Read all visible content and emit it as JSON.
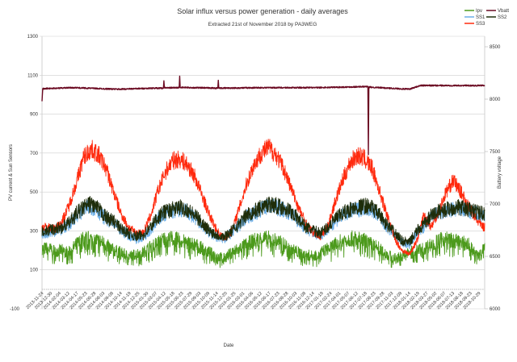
{
  "chart_data": {
    "type": "line",
    "title": "Solar influx versus power generation - daily averages",
    "subtitle": "Extracted 21st of November 2018 by PA3WEG",
    "xlabel": "Date",
    "ylabel": "PV current & Sun Sensors",
    "y2label": "Battery voltage",
    "ylim": [
      -100,
      1300
    ],
    "y2lim": [
      6000,
      8600
    ],
    "yticks": [
      "-100",
      "100",
      "300",
      "500",
      "700",
      "900",
      "1100",
      "1300"
    ],
    "y2ticks": [
      "6000",
      "6500",
      "7000",
      "7500",
      "8000",
      "8500"
    ],
    "grid": true,
    "legend_position": "top-right",
    "x_tick_labels": [
      "2013-11-24",
      "2013-12-30",
      "2014-02-04",
      "2014-03-12",
      "2014-04-17",
      "2014-05-23",
      "2014-06-28",
      "2014-08-03",
      "2014-09-08",
      "2014-10-14",
      "2014-11-19",
      "2014-12-25",
      "2015-01-30",
      "2015-03-07",
      "2015-04-12",
      "2015-05-18",
      "2015-06-23",
      "2015-07-29",
      "2015-09-03",
      "2015-10-09",
      "2015-11-14",
      "2015-12-20",
      "2016-01-25",
      "2016-03-01",
      "2016-04-06",
      "2016-05-12",
      "2016-06-17",
      "2016-07-23",
      "2016-08-28",
      "2016-10-03",
      "2016-11-08",
      "2016-12-14",
      "2017-01-19",
      "2017-02-24",
      "2017-04-01",
      "2017-05-07",
      "2017-06-12",
      "2017-07-18",
      "2017-08-23",
      "2017-09-28",
      "2017-11-03",
      "2017-12-09",
      "2018-01-14",
      "2018-02-19",
      "2018-03-27",
      "2018-05-02",
      "2018-06-07",
      "2018-07-13",
      "2018-08-18",
      "2018-09-23",
      "2018-10-29"
    ],
    "x": [
      "2013-12",
      "2014-01",
      "2014-02",
      "2014-03",
      "2014-04",
      "2014-05",
      "2014-06",
      "2014-07",
      "2014-08",
      "2014-09",
      "2014-10",
      "2014-11",
      "2014-12",
      "2015-01",
      "2015-02",
      "2015-03",
      "2015-04",
      "2015-05",
      "2015-06",
      "2015-07",
      "2015-08",
      "2015-09",
      "2015-10",
      "2015-11",
      "2015-12",
      "2016-01",
      "2016-02",
      "2016-03",
      "2016-04",
      "2016-05",
      "2016-06",
      "2016-07",
      "2016-08",
      "2016-09",
      "2016-10",
      "2016-11",
      "2016-12",
      "2017-01",
      "2017-02",
      "2017-03",
      "2017-04",
      "2017-05",
      "2017-06",
      "2017-07",
      "2017-08",
      "2017-09",
      "2017-10",
      "2017-11",
      "2017-12",
      "2018-01",
      "2018-02",
      "2018-03",
      "2018-04",
      "2018-05",
      "2018-06",
      "2018-07",
      "2018-08",
      "2018-09",
      "2018-10",
      "2018-11"
    ],
    "series": [
      {
        "name": "Ipv",
        "color": "#4c9a1c",
        "axis": "left",
        "values": [
          210,
          200,
          200,
          190,
          230,
          260,
          260,
          250,
          230,
          200,
          190,
          170,
          180,
          190,
          220,
          240,
          260,
          260,
          250,
          240,
          230,
          210,
          190,
          170,
          160,
          190,
          210,
          230,
          250,
          260,
          260,
          250,
          230,
          210,
          190,
          180,
          170,
          190,
          210,
          230,
          250,
          260,
          260,
          250,
          230,
          210,
          180,
          160,
          170,
          190,
          200,
          210,
          230,
          250,
          260,
          250,
          240,
          230,
          180,
          210
        ]
      },
      {
        "name": "SS1",
        "color": "#6aaee8",
        "axis": "left",
        "values": [
          290,
          300,
          310,
          330,
          380,
          410,
          425,
          400,
          360,
          340,
          300,
          280,
          260,
          270,
          310,
          360,
          390,
          400,
          410,
          400,
          370,
          330,
          290,
          270,
          260,
          290,
          330,
          370,
          390,
          410,
          430,
          420,
          410,
          390,
          350,
          310,
          290,
          280,
          310,
          350,
          380,
          400,
          410,
          420,
          410,
          370,
          320,
          280,
          240,
          230,
          290,
          320,
          370,
          390,
          400,
          410,
          410,
          400,
          390,
          380
        ]
      },
      {
        "name": "SS3",
        "color": "#ff2a0e",
        "axis": "left",
        "values": [
          320,
          310,
          350,
          430,
          550,
          680,
          720,
          690,
          620,
          500,
          390,
          320,
          290,
          290,
          380,
          500,
          600,
          660,
          670,
          640,
          580,
          480,
          380,
          300,
          260,
          300,
          420,
          540,
          640,
          700,
          730,
          690,
          620,
          520,
          420,
          340,
          290,
          270,
          330,
          450,
          560,
          650,
          690,
          670,
          620,
          500,
          380,
          260,
          200,
          180,
          250,
          380,
          320,
          400,
          500,
          560,
          500,
          430,
          360,
          320
        ]
      },
      {
        "name": "SS2",
        "color": "#1e2d0a",
        "axis": "left",
        "values": [
          300,
          310,
          320,
          340,
          390,
          420,
          440,
          410,
          370,
          350,
          310,
          290,
          270,
          280,
          320,
          370,
          400,
          410,
          420,
          410,
          380,
          340,
          300,
          280,
          270,
          300,
          340,
          380,
          400,
          420,
          440,
          430,
          420,
          400,
          360,
          320,
          300,
          290,
          320,
          360,
          390,
          410,
          420,
          430,
          420,
          380,
          330,
          290,
          250,
          240,
          300,
          330,
          380,
          400,
          410,
          420,
          420,
          410,
          400,
          390
        ]
      },
      {
        "name": "Vbatt",
        "color": "#6b0a22",
        "axis": "right",
        "points": [
          [
            "2013-11-24",
            7980
          ],
          [
            "2013-11-27",
            8100
          ],
          [
            "2014-04-01",
            8110
          ],
          [
            "2014-10-01",
            8095
          ],
          [
            "2015-03-01",
            8105
          ],
          [
            "2015-04-08",
            8105
          ],
          [
            "2015-04-10",
            8175
          ],
          [
            "2015-04-12",
            8108
          ],
          [
            "2015-06-12",
            8110
          ],
          [
            "2015-06-14",
            8220
          ],
          [
            "2015-06-16",
            8112
          ],
          [
            "2015-11-18",
            8105
          ],
          [
            "2015-11-20",
            8180
          ],
          [
            "2015-11-22",
            8105
          ],
          [
            "2016-06-01",
            8110
          ],
          [
            "2017-01-01",
            8110
          ],
          [
            "2017-07-28",
            8120
          ],
          [
            "2017-07-30",
            7470
          ],
          [
            "2017-08-01",
            8115
          ],
          [
            "2018-01-15",
            8095
          ],
          [
            "2018-03-01",
            8130
          ],
          [
            "2018-11-21",
            8130
          ]
        ]
      }
    ]
  }
}
